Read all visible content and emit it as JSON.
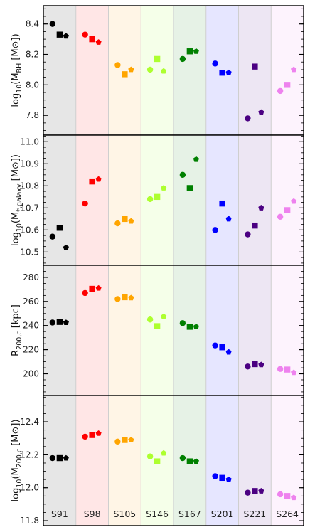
{
  "chart_data": [
    {
      "type": "scatter",
      "ylabel": "log₁₀(M_BH [M☉])",
      "ylabel_main": "log",
      "ylabel_sub": "10",
      "ylabel_rest": "(M",
      "ylabel_rest_sub": "BH",
      "ylabel_unit": " [M☉])",
      "ylim": [
        7.67,
        8.52
      ],
      "yticks": [
        7.8,
        8.0,
        8.2,
        8.4
      ],
      "ytick_labels": [
        "7.8",
        "8.0",
        "8.2",
        "8.4"
      ],
      "points": [
        {
          "sim": "S91",
          "marker": "circle",
          "y": 8.4
        },
        {
          "sim": "S91",
          "marker": "square",
          "y": 8.33
        },
        {
          "sim": "S91",
          "marker": "pentagon",
          "y": 8.32
        },
        {
          "sim": "S98",
          "marker": "circle",
          "y": 8.33
        },
        {
          "sim": "S98",
          "marker": "square",
          "y": 8.3
        },
        {
          "sim": "S98",
          "marker": "pentagon",
          "y": 8.28
        },
        {
          "sim": "S105",
          "marker": "circle",
          "y": 8.13
        },
        {
          "sim": "S105",
          "marker": "square",
          "y": 8.07
        },
        {
          "sim": "S105",
          "marker": "pentagon",
          "y": 8.1
        },
        {
          "sim": "S146",
          "marker": "circle",
          "y": 8.1
        },
        {
          "sim": "S146",
          "marker": "square",
          "y": 8.17
        },
        {
          "sim": "S146",
          "marker": "pentagon",
          "y": 8.09
        },
        {
          "sim": "S167",
          "marker": "circle",
          "y": 8.17
        },
        {
          "sim": "S167",
          "marker": "square",
          "y": 8.22
        },
        {
          "sim": "S167",
          "marker": "pentagon",
          "y": 8.22
        },
        {
          "sim": "S201",
          "marker": "circle",
          "y": 8.14
        },
        {
          "sim": "S201",
          "marker": "square",
          "y": 8.08
        },
        {
          "sim": "S201",
          "marker": "pentagon",
          "y": 8.08
        },
        {
          "sim": "S221",
          "marker": "circle",
          "y": 7.78
        },
        {
          "sim": "S221",
          "marker": "square",
          "y": 8.12
        },
        {
          "sim": "S221",
          "marker": "pentagon",
          "y": 7.82
        },
        {
          "sim": "S264",
          "marker": "circle",
          "y": 7.96
        },
        {
          "sim": "S264",
          "marker": "square",
          "y": 8.0
        },
        {
          "sim": "S264",
          "marker": "pentagon",
          "y": 8.1
        }
      ]
    },
    {
      "type": "scatter",
      "ylabel": "log₁₀(M_*,galaxy [M☉])",
      "ylabel_main": "log",
      "ylabel_sub": "10",
      "ylabel_rest": "(M",
      "ylabel_rest_sub": "*,galaxy",
      "ylabel_unit": " [M☉])",
      "ylim": [
        10.44,
        11.03
      ],
      "yticks": [
        10.5,
        10.6,
        10.7,
        10.8,
        10.9,
        11.0
      ],
      "ytick_labels": [
        "10.5",
        "10.6",
        "10.7",
        "10.8",
        "10.9",
        "11.0"
      ],
      "points": [
        {
          "sim": "S91",
          "marker": "circle",
          "y": 10.57
        },
        {
          "sim": "S91",
          "marker": "square",
          "y": 10.61
        },
        {
          "sim": "S91",
          "marker": "pentagon",
          "y": 10.52
        },
        {
          "sim": "S98",
          "marker": "circle",
          "y": 10.72
        },
        {
          "sim": "S98",
          "marker": "square",
          "y": 10.82
        },
        {
          "sim": "S98",
          "marker": "pentagon",
          "y": 10.83
        },
        {
          "sim": "S105",
          "marker": "circle",
          "y": 10.63
        },
        {
          "sim": "S105",
          "marker": "square",
          "y": 10.65
        },
        {
          "sim": "S105",
          "marker": "pentagon",
          "y": 10.64
        },
        {
          "sim": "S146",
          "marker": "circle",
          "y": 10.74
        },
        {
          "sim": "S146",
          "marker": "square",
          "y": 10.75
        },
        {
          "sim": "S146",
          "marker": "pentagon",
          "y": 10.79
        },
        {
          "sim": "S167",
          "marker": "circle",
          "y": 10.85
        },
        {
          "sim": "S167",
          "marker": "square",
          "y": 10.79
        },
        {
          "sim": "S167",
          "marker": "pentagon",
          "y": 10.92
        },
        {
          "sim": "S201",
          "marker": "circle",
          "y": 10.6
        },
        {
          "sim": "S201",
          "marker": "square",
          "y": 10.72
        },
        {
          "sim": "S201",
          "marker": "pentagon",
          "y": 10.65
        },
        {
          "sim": "S221",
          "marker": "circle",
          "y": 10.58
        },
        {
          "sim": "S221",
          "marker": "square",
          "y": 10.62
        },
        {
          "sim": "S221",
          "marker": "pentagon",
          "y": 10.7
        },
        {
          "sim": "S264",
          "marker": "circle",
          "y": 10.66
        },
        {
          "sim": "S264",
          "marker": "square",
          "y": 10.69
        },
        {
          "sim": "S264",
          "marker": "pentagon",
          "y": 10.73
        }
      ]
    },
    {
      "type": "scatter",
      "ylabel": "R_200,c [kpc]",
      "ylabel_main": "R",
      "ylabel_sub": "200,c",
      "ylabel_rest": "",
      "ylabel_rest_sub": "",
      "ylabel_unit": " [kpc]",
      "ylim": [
        182,
        290
      ],
      "yticks": [
        200,
        220,
        240,
        260,
        280
      ],
      "ytick_labels": [
        "200",
        "220",
        "240",
        "260",
        "280"
      ],
      "points": [
        {
          "sim": "S91",
          "marker": "circle",
          "y": 242.5
        },
        {
          "sim": "S91",
          "marker": "square",
          "y": 243.0
        },
        {
          "sim": "S91",
          "marker": "pentagon",
          "y": 242.5
        },
        {
          "sim": "S98",
          "marker": "circle",
          "y": 267.0
        },
        {
          "sim": "S98",
          "marker": "square",
          "y": 270.5
        },
        {
          "sim": "S98",
          "marker": "pentagon",
          "y": 271.0
        },
        {
          "sim": "S105",
          "marker": "circle",
          "y": 262.0
        },
        {
          "sim": "S105",
          "marker": "square",
          "y": 263.5
        },
        {
          "sim": "S105",
          "marker": "pentagon",
          "y": 263.0
        },
        {
          "sim": "S146",
          "marker": "circle",
          "y": 245.0
        },
        {
          "sim": "S146",
          "marker": "square",
          "y": 239.5
        },
        {
          "sim": "S146",
          "marker": "pentagon",
          "y": 247.5
        },
        {
          "sim": "S167",
          "marker": "circle",
          "y": 242.0
        },
        {
          "sim": "S167",
          "marker": "square",
          "y": 239.0
        },
        {
          "sim": "S167",
          "marker": "pentagon",
          "y": 239.0
        },
        {
          "sim": "S201",
          "marker": "circle",
          "y": 223.5
        },
        {
          "sim": "S201",
          "marker": "square",
          "y": 222.0
        },
        {
          "sim": "S201",
          "marker": "pentagon",
          "y": 218.0
        },
        {
          "sim": "S221",
          "marker": "circle",
          "y": 206.0
        },
        {
          "sim": "S221",
          "marker": "square",
          "y": 208.0
        },
        {
          "sim": "S221",
          "marker": "pentagon",
          "y": 207.5
        },
        {
          "sim": "S264",
          "marker": "circle",
          "y": 204.0
        },
        {
          "sim": "S264",
          "marker": "square",
          "y": 203.5
        },
        {
          "sim": "S264",
          "marker": "pentagon",
          "y": 201.0
        }
      ]
    },
    {
      "type": "scatter",
      "ylabel": "log₁₀(M_200,c [M☉])",
      "ylabel_main": "log",
      "ylabel_sub": "10",
      "ylabel_rest": "(M",
      "ylabel_rest_sub": "200,c",
      "ylabel_unit": " [M☉])",
      "ylim": [
        11.77,
        12.56
      ],
      "yticks": [
        11.8,
        12.0,
        12.2,
        12.4
      ],
      "ytick_labels": [
        "11.8",
        "12.0",
        "12.2",
        "12.4"
      ],
      "points": [
        {
          "sim": "S91",
          "marker": "circle",
          "y": 12.18
        },
        {
          "sim": "S91",
          "marker": "square",
          "y": 12.18
        },
        {
          "sim": "S91",
          "marker": "pentagon",
          "y": 12.18
        },
        {
          "sim": "S98",
          "marker": "circle",
          "y": 12.31
        },
        {
          "sim": "S98",
          "marker": "square",
          "y": 12.32
        },
        {
          "sim": "S98",
          "marker": "pentagon",
          "y": 12.33
        },
        {
          "sim": "S105",
          "marker": "circle",
          "y": 12.28
        },
        {
          "sim": "S105",
          "marker": "square",
          "y": 12.29
        },
        {
          "sim": "S105",
          "marker": "pentagon",
          "y": 12.29
        },
        {
          "sim": "S146",
          "marker": "circle",
          "y": 12.19
        },
        {
          "sim": "S146",
          "marker": "square",
          "y": 12.16
        },
        {
          "sim": "S146",
          "marker": "pentagon",
          "y": 12.21
        },
        {
          "sim": "S167",
          "marker": "circle",
          "y": 12.18
        },
        {
          "sim": "S167",
          "marker": "square",
          "y": 12.16
        },
        {
          "sim": "S167",
          "marker": "pentagon",
          "y": 12.16
        },
        {
          "sim": "S201",
          "marker": "circle",
          "y": 12.07
        },
        {
          "sim": "S201",
          "marker": "square",
          "y": 12.06
        },
        {
          "sim": "S201",
          "marker": "pentagon",
          "y": 12.05
        },
        {
          "sim": "S221",
          "marker": "circle",
          "y": 11.97
        },
        {
          "sim": "S221",
          "marker": "square",
          "y": 11.98
        },
        {
          "sim": "S221",
          "marker": "pentagon",
          "y": 11.98
        },
        {
          "sim": "S264",
          "marker": "circle",
          "y": 11.96
        },
        {
          "sim": "S264",
          "marker": "square",
          "y": 11.95
        },
        {
          "sim": "S264",
          "marker": "pentagon",
          "y": 11.94
        }
      ]
    }
  ],
  "simulations": [
    {
      "name": "S91",
      "color": "#000000",
      "band": "#e6e6e6"
    },
    {
      "name": "S98",
      "color": "#ff0000",
      "band": "#ffe6e6"
    },
    {
      "name": "S105",
      "color": "#ffa500",
      "band": "#fff5e6"
    },
    {
      "name": "S146",
      "color": "#adff2f",
      "band": "#f5ffe9"
    },
    {
      "name": "S167",
      "color": "#008000",
      "band": "#e6f2e6"
    },
    {
      "name": "S201",
      "color": "#0000ff",
      "band": "#e6e6ff"
    },
    {
      "name": "S221",
      "color": "#4b0082",
      "band": "#ede6f3"
    },
    {
      "name": "S264",
      "color": "#ee82ee",
      "band": "#fdf3fd"
    }
  ],
  "grid": false,
  "legend": "none"
}
